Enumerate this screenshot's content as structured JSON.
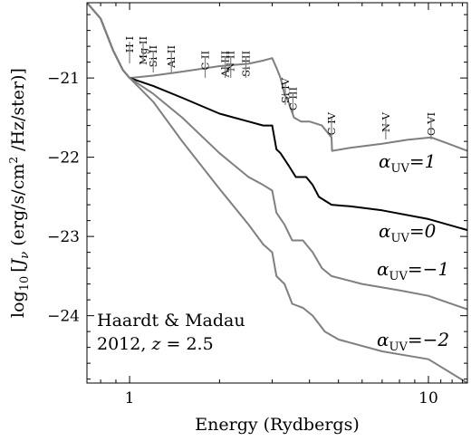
{
  "chart_data": {
    "type": "line",
    "xscale": "log",
    "xlim": [
      0.72,
      13.5
    ],
    "ylim": [
      -24.85,
      -20.05
    ],
    "xlabel": "Energy (Rydbergs)",
    "ylabel_prefix": "log",
    "ylabel_sub": "10",
    "ylabel_j": "J",
    "ylabel_nu": "ν",
    "ylabel_units_a": " (erg/s/cm",
    "ylabel_units_sup": "2",
    "ylabel_units_b": " /Hz/ster)",
    "x_ticks": [
      {
        "value": 1,
        "label": "1"
      },
      {
        "value": 10,
        "label": "10"
      }
    ],
    "y_ticks": [
      {
        "value": -21,
        "label": "−21"
      },
      {
        "value": -22,
        "label": "−22"
      },
      {
        "value": -23,
        "label": "−23"
      },
      {
        "value": -24,
        "label": "−24"
      }
    ],
    "annotation_lines": [
      "Haardt & Madau",
      "2012, "
    ],
    "annotation_z": "z",
    "annotation_z_value": " = 2.5",
    "ion_edges": [
      {
        "label": "H I",
        "x": 1.0
      },
      {
        "label": "Mg II",
        "x": 1.11
      },
      {
        "label": "Si II",
        "x": 1.2
      },
      {
        "label": "Al II",
        "x": 1.38
      },
      {
        "label": "C II",
        "x": 1.79
      },
      {
        "label": "Al III",
        "x": 2.09
      },
      {
        "label": "N II",
        "x": 2.18
      },
      {
        "label": "Si III",
        "x": 2.45
      },
      {
        "label": "Si IV",
        "x": 3.32
      },
      {
        "label": "C III",
        "x": 3.52
      },
      {
        "label": "C IV",
        "x": 4.74
      },
      {
        "label": "N V",
        "x": 7.2
      },
      {
        "label": "O VI",
        "x": 10.2
      }
    ],
    "series": [
      {
        "name": "1",
        "color": "#7f7f7f",
        "points": [
          [
            0.72,
            -20.05
          ],
          [
            0.8,
            -20.25
          ],
          [
            0.88,
            -20.65
          ],
          [
            0.95,
            -20.9
          ],
          [
            1.0,
            -21.0
          ],
          [
            1.2,
            -20.97
          ],
          [
            1.5,
            -20.92
          ],
          [
            2.0,
            -20.85
          ],
          [
            2.5,
            -20.82
          ],
          [
            2.8,
            -20.78
          ],
          [
            3.0,
            -20.75
          ],
          [
            3.1,
            -20.87
          ],
          [
            3.2,
            -21.0
          ],
          [
            3.3,
            -21.2
          ],
          [
            3.4,
            -21.3
          ],
          [
            3.55,
            -21.5
          ],
          [
            3.75,
            -21.55
          ],
          [
            4.0,
            -21.55
          ],
          [
            4.4,
            -21.6
          ],
          [
            4.74,
            -21.75
          ],
          [
            4.76,
            -21.92
          ],
          [
            5.5,
            -21.88
          ],
          [
            7.0,
            -21.83
          ],
          [
            8.5,
            -21.78
          ],
          [
            10.2,
            -21.75
          ],
          [
            11.5,
            -21.82
          ],
          [
            13.5,
            -21.92
          ]
        ]
      },
      {
        "name": "0",
        "color": "#000000",
        "points": [
          [
            0.72,
            -20.05
          ],
          [
            0.8,
            -20.25
          ],
          [
            0.88,
            -20.65
          ],
          [
            0.95,
            -20.9
          ],
          [
            1.0,
            -21.0
          ],
          [
            1.2,
            -21.1
          ],
          [
            1.5,
            -21.25
          ],
          [
            2.0,
            -21.45
          ],
          [
            2.5,
            -21.55
          ],
          [
            2.8,
            -21.6
          ],
          [
            3.0,
            -21.6
          ],
          [
            3.1,
            -21.9
          ],
          [
            3.2,
            -21.95
          ],
          [
            3.4,
            -22.1
          ],
          [
            3.6,
            -22.25
          ],
          [
            3.9,
            -22.25
          ],
          [
            4.1,
            -22.35
          ],
          [
            4.3,
            -22.5
          ],
          [
            4.74,
            -22.6
          ],
          [
            5.5,
            -22.62
          ],
          [
            7.0,
            -22.67
          ],
          [
            10.0,
            -22.78
          ],
          [
            13.5,
            -22.92
          ]
        ]
      },
      {
        "name": "-1",
        "color": "#7f7f7f",
        "points": [
          [
            0.72,
            -20.05
          ],
          [
            0.8,
            -20.25
          ],
          [
            0.88,
            -20.65
          ],
          [
            0.95,
            -20.9
          ],
          [
            1.0,
            -21.0
          ],
          [
            1.2,
            -21.2
          ],
          [
            1.5,
            -21.5
          ],
          [
            2.0,
            -21.95
          ],
          [
            2.5,
            -22.25
          ],
          [
            2.8,
            -22.35
          ],
          [
            3.0,
            -22.42
          ],
          [
            3.1,
            -22.7
          ],
          [
            3.3,
            -22.85
          ],
          [
            3.5,
            -23.05
          ],
          [
            3.8,
            -23.05
          ],
          [
            4.1,
            -23.2
          ],
          [
            4.4,
            -23.4
          ],
          [
            4.74,
            -23.5
          ],
          [
            6.0,
            -23.6
          ],
          [
            8.0,
            -23.68
          ],
          [
            10.0,
            -23.75
          ],
          [
            13.5,
            -23.92
          ]
        ]
      },
      {
        "name": "-2",
        "color": "#7f7f7f",
        "points": [
          [
            0.72,
            -20.05
          ],
          [
            0.8,
            -20.25
          ],
          [
            0.88,
            -20.65
          ],
          [
            0.95,
            -20.9
          ],
          [
            1.0,
            -21.0
          ],
          [
            1.2,
            -21.3
          ],
          [
            1.5,
            -21.8
          ],
          [
            2.0,
            -22.4
          ],
          [
            2.5,
            -22.85
          ],
          [
            2.8,
            -23.1
          ],
          [
            3.0,
            -23.2
          ],
          [
            3.1,
            -23.5
          ],
          [
            3.3,
            -23.6
          ],
          [
            3.5,
            -23.85
          ],
          [
            3.8,
            -23.9
          ],
          [
            4.1,
            -24.0
          ],
          [
            4.5,
            -24.2
          ],
          [
            5.0,
            -24.3
          ],
          [
            7.0,
            -24.45
          ],
          [
            10.0,
            -24.55
          ],
          [
            13.5,
            -24.85
          ]
        ]
      }
    ],
    "curve_labels": [
      {
        "series": "1",
        "prefix": "α",
        "sub": "UV",
        "value": "=1"
      },
      {
        "series": "0",
        "prefix": "α",
        "sub": "UV",
        "value": "=0"
      },
      {
        "series": "-1",
        "prefix": "α",
        "sub": "UV",
        "value": "=−1"
      },
      {
        "series": "-2",
        "prefix": "α",
        "sub": "UV",
        "value": "=−2"
      }
    ]
  }
}
